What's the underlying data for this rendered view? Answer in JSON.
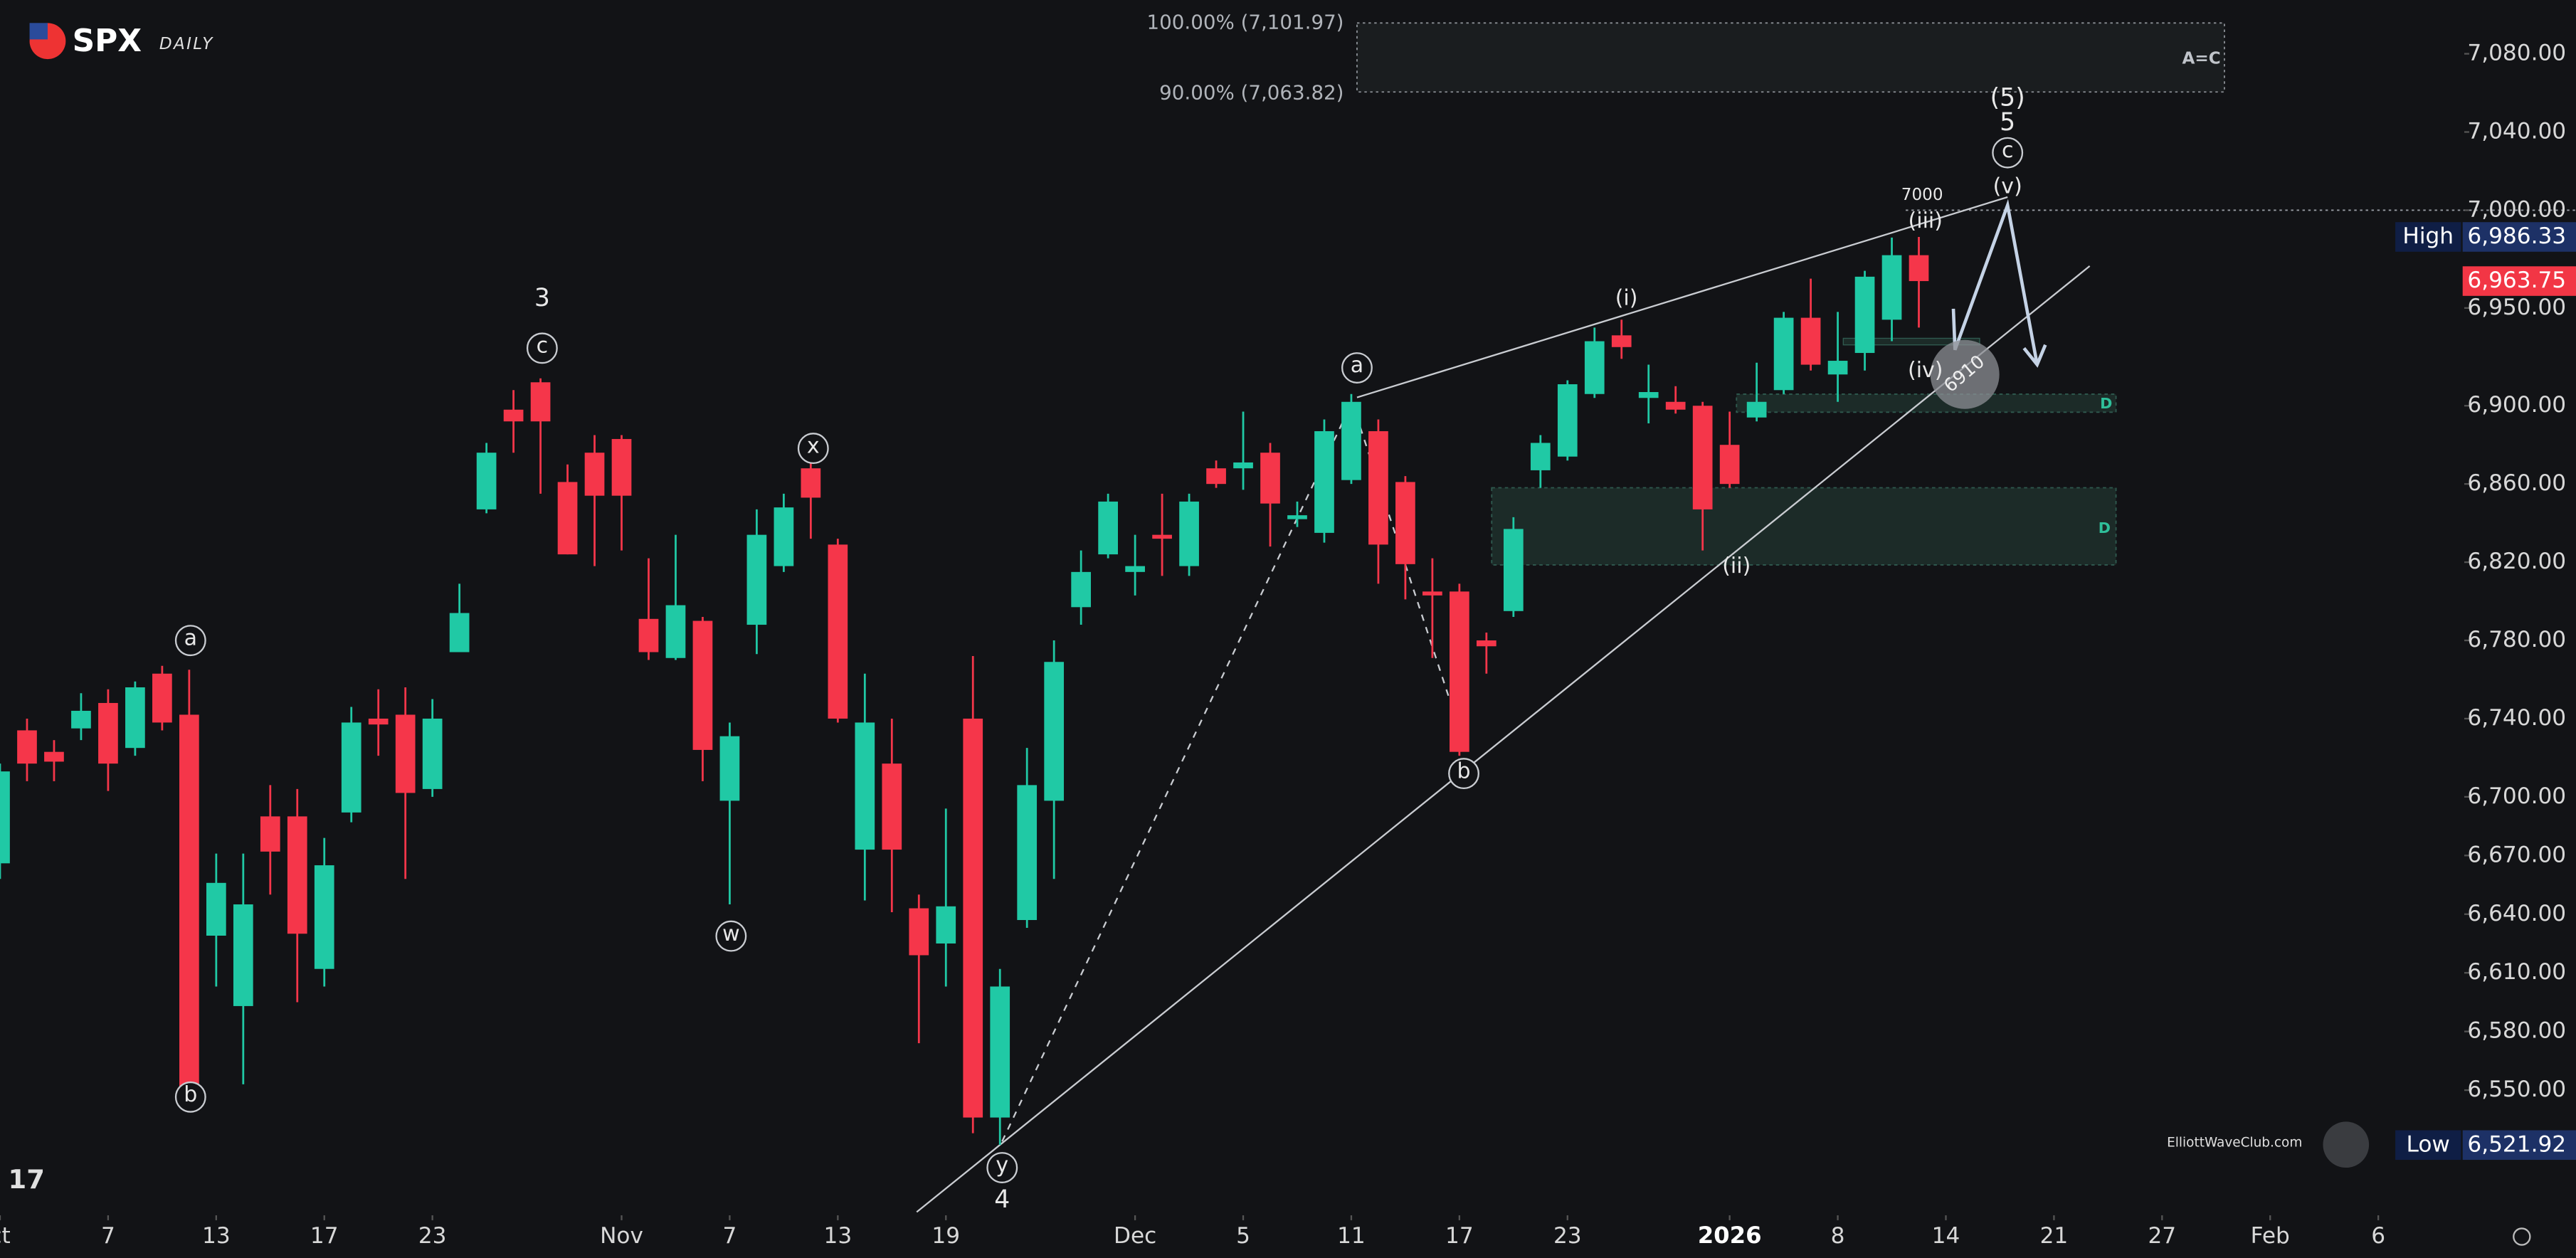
{
  "chart_data": {
    "type": "candlestick",
    "title": "SPX",
    "subtitle": "DAILY",
    "up_color": "#20c9a5",
    "down_color": "#f5364a",
    "x": [
      0,
      1,
      2,
      3,
      4,
      5,
      6,
      7,
      8,
      9,
      10,
      11,
      12,
      13,
      14,
      15,
      16,
      17,
      18,
      19,
      20,
      21,
      22,
      23,
      24,
      25,
      26,
      27,
      28,
      29,
      30,
      31,
      32,
      33,
      34,
      35,
      36,
      37,
      38,
      39,
      40,
      41,
      42,
      43,
      44,
      45,
      46,
      47,
      48,
      49,
      50,
      51,
      52,
      53,
      54,
      55,
      56,
      57,
      58,
      59,
      60,
      61,
      62,
      63,
      64,
      65,
      66,
      67,
      68,
      69,
      70,
      71
    ],
    "open": [
      6666,
      6734,
      6723,
      6735,
      6748,
      6725,
      6763,
      6742,
      6629,
      6593,
      6690,
      6690,
      6612,
      6692,
      6740,
      6742,
      6704,
      6774,
      6847,
      6898,
      6912,
      6861,
      6876,
      6883,
      6791,
      6771,
      6790,
      6698,
      6788,
      6818,
      6868,
      6829,
      6673,
      6717,
      6643,
      6625,
      6740,
      6536,
      6637,
      6698,
      6797,
      6824,
      6815,
      6834,
      6818,
      6868,
      6868,
      6876,
      6842,
      6835,
      6862,
      6887,
      6861,
      6805,
      6805,
      6780,
      6795,
      6867,
      6874,
      6906,
      6936,
      6904,
      6902,
      6900,
      6880,
      6894,
      6908,
      6945,
      6916,
      6927,
      6944,
      6977
    ],
    "high": [
      6717,
      6740,
      6729,
      6753,
      6755,
      6759,
      6767,
      6765,
      6671,
      6671,
      6706,
      6704,
      6679,
      6746,
      6755,
      6756,
      6750,
      6809,
      6881,
      6908,
      6914,
      6870,
      6885,
      6885,
      6822,
      6834,
      6792,
      6738,
      6847,
      6855,
      6876,
      6832,
      6763,
      6740,
      6650,
      6694,
      6772,
      6612,
      6725,
      6780,
      6826,
      6855,
      6834,
      6855,
      6855,
      6872,
      6897,
      6881,
      6851,
      6893,
      6906,
      6893,
      6864,
      6822,
      6809,
      6784,
      6843,
      6885,
      6913,
      6940,
      6944,
      6921,
      6910,
      6902,
      6897,
      6922,
      6948,
      6965,
      6948,
      6969,
      6986,
      6986.33
    ],
    "low": [
      6658,
      6708,
      6708,
      6729,
      6703,
      6721,
      6734,
      6546,
      6603,
      6553,
      6650,
      6595,
      6603,
      6687,
      6721,
      6658,
      6700,
      6774,
      6845,
      6876,
      6855,
      6824,
      6818,
      6826,
      6770,
      6770,
      6708,
      6645,
      6773,
      6815,
      6832,
      6738,
      6647,
      6641,
      6574,
      6603,
      6528,
      6522,
      6633,
      6658,
      6788,
      6822,
      6803,
      6813,
      6813,
      6858,
      6857,
      6828,
      6838,
      6830,
      6860,
      6809,
      6801,
      6771,
      6721,
      6763,
      6792,
      6858,
      6872,
      6904,
      6924,
      6891,
      6896,
      6826,
      6858,
      6892,
      6906,
      6918,
      6902,
      6918,
      6933,
      6940
    ],
    "close": [
      6713,
      6717,
      6718,
      6744,
      6717,
      6756,
      6738,
      6551,
      6656,
      6645,
      6672,
      6630,
      6665,
      6738,
      6737,
      6702,
      6740,
      6794,
      6876,
      6892,
      6892,
      6824,
      6854,
      6854,
      6774,
      6798,
      6724,
      6731,
      6834,
      6848,
      6853,
      6740,
      6738,
      6673,
      6619,
      6644,
      6536,
      6603,
      6706,
      6769,
      6815,
      6851,
      6818,
      6832,
      6851,
      6860,
      6871,
      6850,
      6844,
      6887,
      6902,
      6829,
      6819,
      6803,
      6723,
      6777,
      6837,
      6881,
      6911,
      6933,
      6930,
      6907,
      6898,
      6847,
      6860,
      6902,
      6945,
      6921,
      6923,
      6966,
      6977,
      6963.75
    ],
    "xlim": [
      0,
      91
    ],
    "ylim": [
      6486,
      7107.5
    ],
    "xticks": [
      {
        "value": 0,
        "label": "ct"
      },
      {
        "value": 4,
        "label": "7"
      },
      {
        "value": 8,
        "label": "13"
      },
      {
        "value": 12,
        "label": "17"
      },
      {
        "value": 16,
        "label": "23"
      },
      {
        "value": 23,
        "label": "Nov"
      },
      {
        "value": 27,
        "label": "7"
      },
      {
        "value": 31,
        "label": "13"
      },
      {
        "value": 35,
        "label": "19"
      },
      {
        "value": 42,
        "label": "Dec"
      },
      {
        "value": 46,
        "label": "5"
      },
      {
        "value": 50,
        "label": "11"
      },
      {
        "value": 54,
        "label": "17"
      },
      {
        "value": 58,
        "label": "23"
      },
      {
        "value": 64,
        "label": "2026"
      },
      {
        "value": 68,
        "label": "8"
      },
      {
        "value": 72,
        "label": "14"
      },
      {
        "value": 76,
        "label": "21"
      },
      {
        "value": 80,
        "label": "27"
      },
      {
        "value": 84,
        "label": "Feb"
      },
      {
        "value": 88,
        "label": "6"
      }
    ],
    "yticks": [
      {
        "value": 7080,
        "label": "7,080.00"
      },
      {
        "value": 7040,
        "label": "7,040.00"
      },
      {
        "value": 7000,
        "label": "7,000.00"
      },
      {
        "value": 6950,
        "label": "6,950.00"
      },
      {
        "value": 6900,
        "label": "6,900.00"
      },
      {
        "value": 6860,
        "label": "6,860.00"
      },
      {
        "value": 6820,
        "label": "6,820.00"
      },
      {
        "value": 6780,
        "label": "6,780.00"
      },
      {
        "value": 6740,
        "label": "6,740.00"
      },
      {
        "value": 6700,
        "label": "6,700.00"
      },
      {
        "value": 6670,
        "label": "6,670.00"
      },
      {
        "value": 6640,
        "label": "6,640.00"
      },
      {
        "value": 6610,
        "label": "6,610.00"
      },
      {
        "value": 6580,
        "label": "6,580.00"
      },
      {
        "value": 6550,
        "label": "6,550.00"
      }
    ],
    "price_labels": [
      {
        "label": "High",
        "value": 6986.33,
        "value_label": "6,986.33"
      },
      {
        "value": 6963.75,
        "value_label": "6,963.75"
      },
      {
        "label": "Low",
        "value": 6521.92,
        "value_label": "6,521.92"
      }
    ],
    "annotations": [
      "a",
      "b",
      "c",
      "x",
      "w",
      "y",
      "a",
      "b",
      "c",
      "3",
      "4",
      "5",
      "(5)",
      "(i)",
      "(ii)",
      "(iii)",
      "(iv)",
      "(v)",
      "7000",
      "6910"
    ],
    "fib_labels": [
      "100.00% (7,101.97)",
      "90.00% (7,063.82)"
    ],
    "zone_labels": [
      "A=C",
      "D",
      "D"
    ],
    "watermark": "ElliottWaveClub.com"
  }
}
